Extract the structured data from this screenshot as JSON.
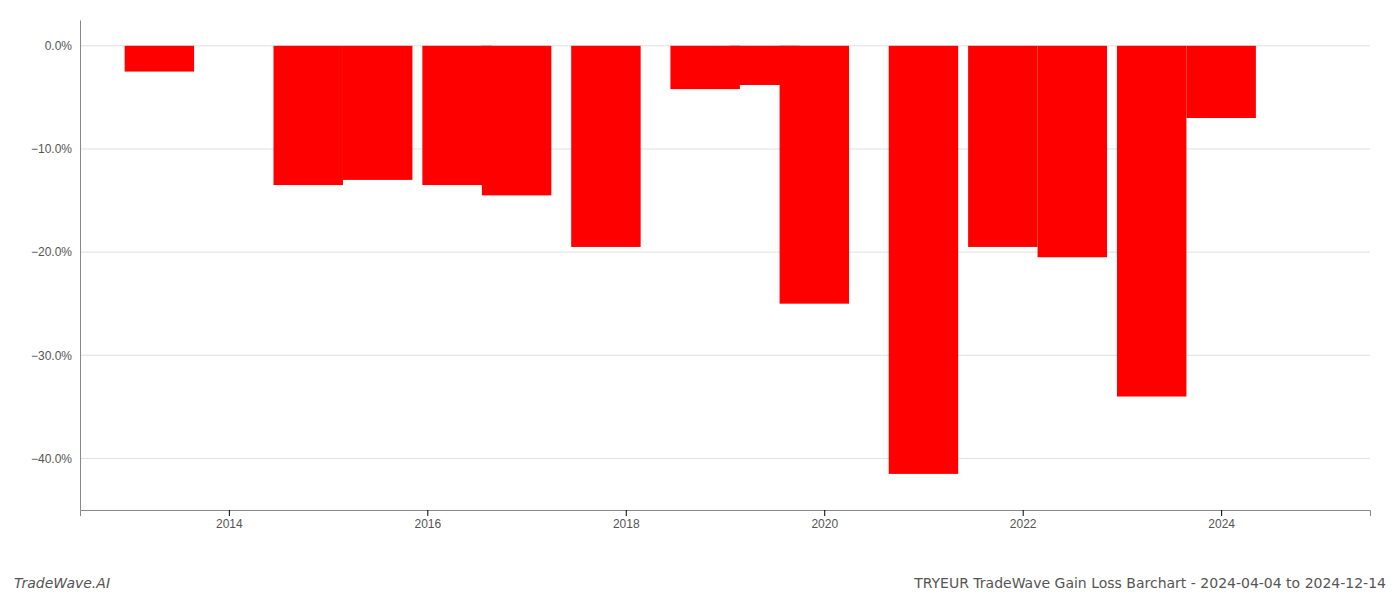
{
  "chart_data": {
    "type": "bar",
    "title": "TRYEUR TradeWave Gain Loss Barchart - 2024-04-04 to 2024-12-14",
    "annotations": [
      "TradeWave.AI"
    ],
    "x": [
      2013.3,
      2014.8,
      2015.5,
      2016.3,
      2016.9,
      2017.8,
      2018.8,
      2019.4,
      2019.9,
      2021.0,
      2021.8,
      2022.5,
      2023.3,
      2024.0
    ],
    "values": [
      -2.5,
      -13.5,
      -13.0,
      -13.5,
      -14.5,
      -19.5,
      -4.2,
      -3.8,
      -25.0,
      -41.5,
      -19.5,
      -20.5,
      -34.0,
      -7.0
    ],
    "color": "#ff0000",
    "xlim": [
      2012.5,
      2025.5
    ],
    "xticks": [
      2014,
      2016,
      2018,
      2020,
      2022,
      2024
    ],
    "ylim": [
      -45,
      2.5
    ],
    "yticks": [
      {
        "value": 0.0,
        "label": "0.0%"
      },
      {
        "value": -10.0,
        "label": "−10.0%"
      },
      {
        "value": -20.0,
        "label": "−20.0%"
      },
      {
        "value": -30.0,
        "label": "−30.0%"
      },
      {
        "value": -40.0,
        "label": "−40.0%"
      }
    ],
    "grid": true
  }
}
